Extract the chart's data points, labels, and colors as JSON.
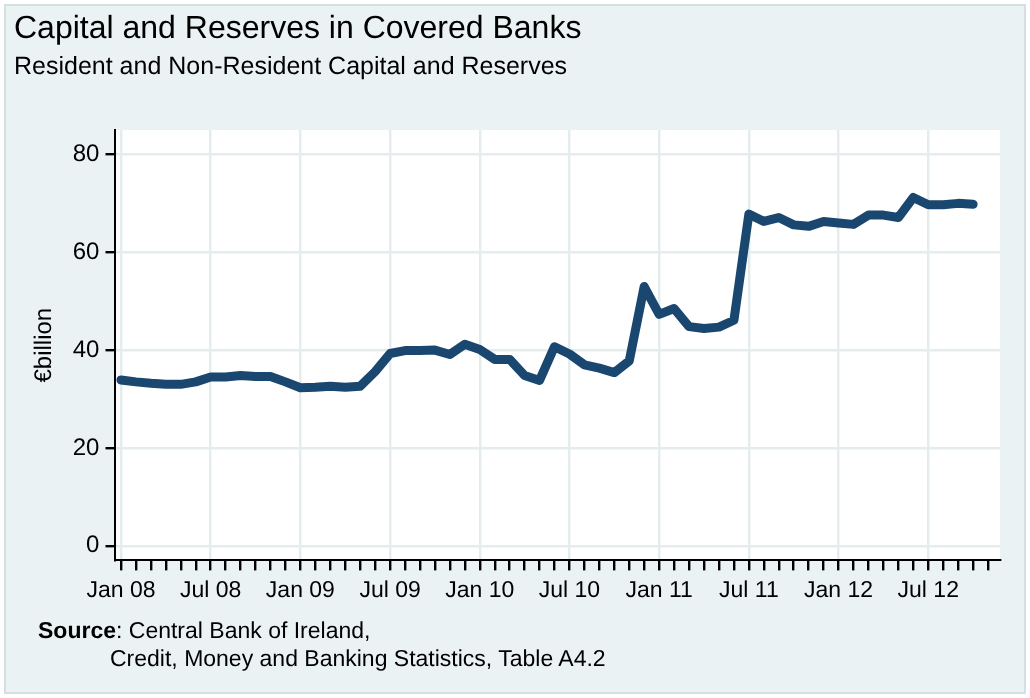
{
  "chart_data": {
    "type": "line",
    "title": "Capital and Reserves in Covered Banks",
    "subtitle": "Resident and Non-Resident Capital and Reserves",
    "ylabel": "€billion",
    "annotations": [
      "Source: Central Bank of Ireland,\nCredit, Money and Banking Statistics, Table A4.2"
    ],
    "x": [
      "2008-01",
      "2008-02",
      "2008-03",
      "2008-04",
      "2008-05",
      "2008-06",
      "2008-07",
      "2008-08",
      "2008-09",
      "2008-10",
      "2008-11",
      "2008-12",
      "2009-01",
      "2009-02",
      "2009-03",
      "2009-04",
      "2009-05",
      "2009-06",
      "2009-07",
      "2009-08",
      "2009-09",
      "2009-10",
      "2009-11",
      "2009-12",
      "2010-01",
      "2010-02",
      "2010-03",
      "2010-04",
      "2010-05",
      "2010-06",
      "2010-07",
      "2010-08",
      "2010-09",
      "2010-10",
      "2010-11",
      "2010-12",
      "2011-01",
      "2011-02",
      "2011-03",
      "2011-04",
      "2011-05",
      "2011-06",
      "2011-07",
      "2011-08",
      "2011-09",
      "2011-10",
      "2011-11",
      "2011-12",
      "2012-01",
      "2012-02",
      "2012-03",
      "2012-04",
      "2012-05",
      "2012-06",
      "2012-07",
      "2012-08",
      "2012-09",
      "2012-10"
    ],
    "series": [
      {
        "color": "#1a476f",
        "values": [
          33.9,
          33.5,
          33.2,
          33.0,
          33.0,
          33.5,
          34.5,
          34.5,
          34.8,
          34.6,
          34.6,
          33.5,
          32.3,
          32.4,
          32.6,
          32.4,
          32.6,
          35.6,
          39.3,
          39.9,
          39.9,
          40.0,
          39.1,
          41.2,
          40.1,
          38.1,
          38.1,
          34.8,
          33.8,
          40.7,
          39.2,
          37.0,
          36.3,
          35.4,
          37.8,
          53.0,
          47.3,
          48.5,
          44.8,
          44.4,
          44.7,
          46.1,
          67.8,
          66.3,
          67.1,
          65.6,
          65.3,
          66.3,
          66.0,
          65.7,
          67.6,
          67.6,
          67.1,
          71.2,
          69.7,
          69.7,
          70.0,
          69.8
        ]
      }
    ],
    "xlim": [
      "2007-12-20",
      "2012-11-25"
    ],
    "xticks": [
      {
        "value": "2008-01",
        "label": "Jan 08"
      },
      {
        "value": "2008-02",
        "label": null
      },
      {
        "value": "2008-03",
        "label": null
      },
      {
        "value": "2008-04",
        "label": null
      },
      {
        "value": "2008-05",
        "label": null
      },
      {
        "value": "2008-06",
        "label": null
      },
      {
        "value": "2008-07",
        "label": "Jul 08"
      },
      {
        "value": "2008-08",
        "label": null
      },
      {
        "value": "2008-09",
        "label": null
      },
      {
        "value": "2008-10",
        "label": null
      },
      {
        "value": "2008-11",
        "label": null
      },
      {
        "value": "2008-12",
        "label": null
      },
      {
        "value": "2009-01",
        "label": "Jan 09"
      },
      {
        "value": "2009-02",
        "label": null
      },
      {
        "value": "2009-03",
        "label": null
      },
      {
        "value": "2009-04",
        "label": null
      },
      {
        "value": "2009-05",
        "label": null
      },
      {
        "value": "2009-06",
        "label": null
      },
      {
        "value": "2009-07",
        "label": "Jul 09"
      },
      {
        "value": "2009-08",
        "label": null
      },
      {
        "value": "2009-09",
        "label": null
      },
      {
        "value": "2009-10",
        "label": null
      },
      {
        "value": "2009-11",
        "label": null
      },
      {
        "value": "2009-12",
        "label": null
      },
      {
        "value": "2010-01",
        "label": "Jan 10"
      },
      {
        "value": "2010-02",
        "label": null
      },
      {
        "value": "2010-03",
        "label": null
      },
      {
        "value": "2010-04",
        "label": null
      },
      {
        "value": "2010-05",
        "label": null
      },
      {
        "value": "2010-06",
        "label": null
      },
      {
        "value": "2010-07",
        "label": "Jul 10"
      },
      {
        "value": "2010-08",
        "label": null
      },
      {
        "value": "2010-09",
        "label": null
      },
      {
        "value": "2010-10",
        "label": null
      },
      {
        "value": "2010-11",
        "label": null
      },
      {
        "value": "2010-12",
        "label": null
      },
      {
        "value": "2011-01",
        "label": "Jan 11"
      },
      {
        "value": "2011-02",
        "label": null
      },
      {
        "value": "2011-03",
        "label": null
      },
      {
        "value": "2011-04",
        "label": null
      },
      {
        "value": "2011-05",
        "label": null
      },
      {
        "value": "2011-06",
        "label": null
      },
      {
        "value": "2011-07",
        "label": "Jul 11"
      },
      {
        "value": "2011-08",
        "label": null
      },
      {
        "value": "2011-09",
        "label": null
      },
      {
        "value": "2011-10",
        "label": null
      },
      {
        "value": "2011-11",
        "label": null
      },
      {
        "value": "2011-12",
        "label": null
      },
      {
        "value": "2012-01",
        "label": "Jan 12"
      },
      {
        "value": "2012-02",
        "label": null
      },
      {
        "value": "2012-03",
        "label": null
      },
      {
        "value": "2012-04",
        "label": null
      },
      {
        "value": "2012-05",
        "label": null
      },
      {
        "value": "2012-06",
        "label": null
      },
      {
        "value": "2012-07",
        "label": "Jul 12"
      },
      {
        "value": "2012-08",
        "label": null
      },
      {
        "value": "2012-09",
        "label": null
      },
      {
        "value": "2012-10",
        "label": null
      },
      {
        "value": "2012-11",
        "label": null
      }
    ],
    "ylim": [
      -3,
      85
    ],
    "yticks": [
      0,
      20,
      40,
      60,
      80
    ],
    "grid": true,
    "legend": false,
    "marker": "none",
    "line_style": "solid"
  }
}
